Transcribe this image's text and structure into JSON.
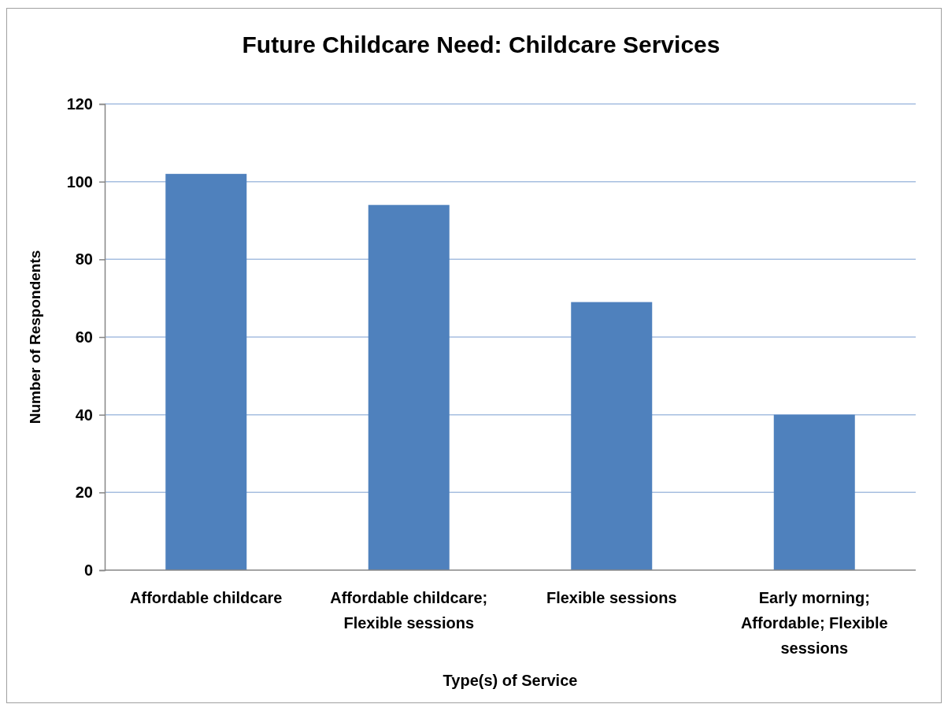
{
  "chart_data": {
    "type": "bar",
    "title": "Future Childcare Need: Childcare Services",
    "xlabel": "Type(s) of Service",
    "ylabel": "Number of Respondents",
    "categories": [
      "Affordable childcare",
      "Affordable childcare; Flexible sessions",
      "Flexible sessions",
      "Early morning; Affordable; Flexible sessions"
    ],
    "values": [
      102,
      94,
      69,
      40
    ],
    "color": "#4f81bd",
    "ylim": [
      0,
      120
    ],
    "yticks": [
      0,
      20,
      40,
      60,
      80,
      100,
      120
    ],
    "grid": "y",
    "legend": false
  }
}
